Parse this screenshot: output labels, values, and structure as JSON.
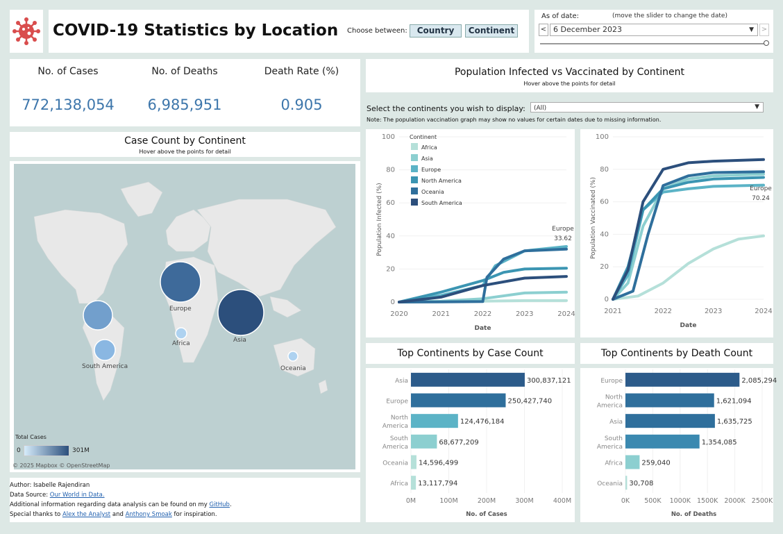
{
  "header": {
    "title": "COVID-19 Statistics by Location",
    "choose_label": "Choose between:",
    "country_btn": "Country",
    "continent_btn": "Continent"
  },
  "date_filter": {
    "label": "As of date:",
    "hint": "(move the slider to change the date)",
    "value": "6 December 2023",
    "prev": "<",
    "next": ">"
  },
  "kpis": {
    "cases_label": "No. of Cases",
    "cases_value": "772,138,054",
    "deaths_label": "No. of Deaths",
    "deaths_value": "6,985,951",
    "rate_label": "Death Rate (%)",
    "rate_value": "0.905"
  },
  "pop_header": {
    "title": "Population Infected vs Vaccinated by Continent",
    "subtitle": "Hover above the points for detail",
    "select_label": "Select the continents you wish to display:",
    "select_value": "(All)",
    "note": "Note: The population vaccination graph may show no values for certain dates due to missing information."
  },
  "map": {
    "title": "Case Count by Continent",
    "subtitle": "Hover above the points for detail",
    "legend_title": "Total Cases",
    "legend_min": "0",
    "legend_max": "301M",
    "credit": "© 2025 Mapbox © OpenStreetMap",
    "labels": [
      "Europe",
      "Asia",
      "Africa",
      "South America",
      "Oceania"
    ]
  },
  "footer": {
    "author": "Author: Isabelle Rajendiran",
    "source_prefix": "Data Source: ",
    "source_link": "Our World in Data.",
    "info_prefix": "Additional information regarding data analysis can be found on my ",
    "info_link": "GitHub",
    "info_suffix": ".",
    "thanks_prefix": "Special thanks to ",
    "thanks_link1": "Alex the Analyst",
    "thanks_and": " and ",
    "thanks_link2": "Anthony Smoak",
    "thanks_suffix": " for inspiration."
  },
  "colors": {
    "Africa": "#b5e0d9",
    "Asia": "#8ccfd0",
    "Europe": "#5bb3c6",
    "North America": "#3b95b2",
    "Oceania": "#2f6f9c",
    "South America": "#2c4f7c"
  },
  "chart_data": [
    {
      "type": "line",
      "ylabel": "Population Infected (%)",
      "xlabel": "Date",
      "x_ticks": [
        "2020",
        "2021",
        "2022",
        "2023",
        "2024"
      ],
      "y_ticks": [
        "0",
        "20",
        "40",
        "60",
        "80",
        "100"
      ],
      "ylim": [
        0,
        100
      ],
      "legend_title": "Continent",
      "legend_position": "top-left",
      "annotation": {
        "label": "Europe",
        "value": "33.62"
      },
      "series": [
        {
          "name": "Africa",
          "x": [
            2020,
            2021,
            2022,
            2023,
            2024
          ],
          "y": [
            0,
            0.2,
            0.5,
            0.9,
            0.9
          ]
        },
        {
          "name": "Asia",
          "x": [
            2020,
            2021,
            2022,
            2023,
            2024
          ],
          "y": [
            0,
            0.5,
            2,
            5.5,
            6
          ]
        },
        {
          "name": "Europe",
          "x": [
            2020,
            2021,
            2022,
            2022.3,
            2023,
            2024
          ],
          "y": [
            0,
            4,
            10,
            22,
            31,
            33.62
          ]
        },
        {
          "name": "North America",
          "x": [
            2020,
            2021,
            2022,
            2022.5,
            2023,
            2024
          ],
          "y": [
            0,
            6,
            13,
            18,
            20,
            20.5
          ]
        },
        {
          "name": "Oceania",
          "x": [
            2020,
            2021,
            2022,
            2022.1,
            2022.5,
            2023,
            2024
          ],
          "y": [
            0,
            0.1,
            0.3,
            15,
            26,
            31,
            32
          ]
        },
        {
          "name": "South America",
          "x": [
            2020,
            2021,
            2022,
            2023,
            2024
          ],
          "y": [
            0,
            3,
            10,
            14.5,
            15.5
          ]
        }
      ]
    },
    {
      "type": "line",
      "ylabel": "Population Vaccinated (%)",
      "xlabel": "Date",
      "x_ticks": [
        "2021",
        "2022",
        "2023",
        "2024"
      ],
      "y_ticks": [
        "0",
        "20",
        "40",
        "60",
        "80",
        "100"
      ],
      "ylim": [
        0,
        100
      ],
      "annotation": {
        "label": "Europe",
        "value": "70.24"
      },
      "series": [
        {
          "name": "Africa",
          "x": [
            2021,
            2021.5,
            2022,
            2022.5,
            2023,
            2023.5,
            2024
          ],
          "y": [
            0,
            2,
            10,
            22,
            31,
            37,
            39
          ]
        },
        {
          "name": "Asia",
          "x": [
            2021,
            2021.3,
            2021.6,
            2022,
            2022.5,
            2023,
            2024
          ],
          "y": [
            0,
            10,
            45,
            68,
            74,
            76,
            77
          ]
        },
        {
          "name": "Europe",
          "x": [
            2021,
            2021.3,
            2021.6,
            2022,
            2022.5,
            2023,
            2024
          ],
          "y": [
            0,
            15,
            55,
            66,
            68,
            69.5,
            70.24
          ]
        },
        {
          "name": "North America",
          "x": [
            2021,
            2021.3,
            2021.6,
            2022,
            2022.5,
            2023,
            2024
          ],
          "y": [
            0,
            20,
            55,
            68,
            72,
            74,
            75
          ]
        },
        {
          "name": "Oceania",
          "x": [
            2021,
            2021.4,
            2021.7,
            2022,
            2022.5,
            2023,
            2024
          ],
          "y": [
            0,
            5,
            40,
            70,
            76,
            78,
            78.5
          ]
        },
        {
          "name": "South America",
          "x": [
            2021,
            2021.3,
            2021.6,
            2022,
            2022.5,
            2023,
            2024
          ],
          "y": [
            0,
            18,
            60,
            80,
            84,
            85,
            86
          ]
        }
      ]
    },
    {
      "type": "bar",
      "title": "Top Continents by Case Count",
      "xlabel": "No. of Cases",
      "categories": [
        "Asia",
        "Europe",
        "North America",
        "South America",
        "Oceania",
        "Africa"
      ],
      "values": [
        300837121,
        250427740,
        124476184,
        68677209,
        14596499,
        13117794
      ],
      "labels": [
        "300,837,121",
        "250,427,740",
        "124,476,184",
        "68,677,209",
        "14,596,499",
        "13,117,794"
      ],
      "x_ticks": [
        "0M",
        "100M",
        "200M",
        "300M",
        "400M"
      ],
      "xlim": [
        0,
        400000000
      ]
    },
    {
      "type": "bar",
      "title": "Top Continents by Death Count",
      "xlabel": "No. of Deaths",
      "categories": [
        "Europe",
        "North America",
        "Asia",
        "South America",
        "Africa",
        "Oceania"
      ],
      "values": [
        2085294,
        1621094,
        1635725,
        1354085,
        259040,
        30708
      ],
      "labels": [
        "2,085,294",
        "1,621,094",
        "1,635,725",
        "1,354,085",
        "259,040",
        "30,708"
      ],
      "x_ticks": [
        "0K",
        "500K",
        "1000K",
        "1500K",
        "2000K",
        "2500K"
      ],
      "xlim": [
        0,
        2500000
      ]
    }
  ]
}
